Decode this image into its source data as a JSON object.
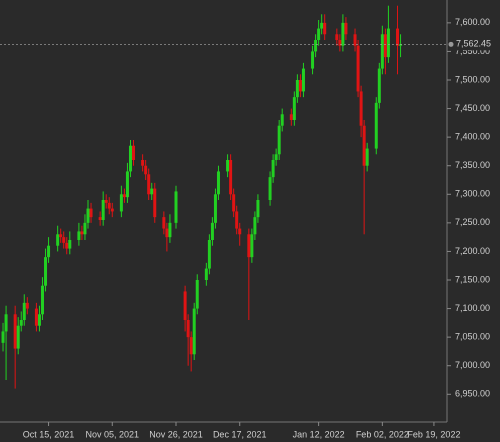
{
  "chart_data": {
    "type": "candlestick",
    "up_color": "#22d022",
    "down_color": "#e01414",
    "x": [
      "2021-09-30",
      "2021-10-01",
      "2021-10-04",
      "2021-10-05",
      "2021-10-06",
      "2021-10-07",
      "2021-10-08",
      "2021-10-11",
      "2021-10-12",
      "2021-10-13",
      "2021-10-14",
      "2021-10-15",
      "2021-10-18",
      "2021-10-19",
      "2021-10-20",
      "2021-10-21",
      "2021-10-22",
      "2021-10-25",
      "2021-10-26",
      "2021-10-27",
      "2021-10-28",
      "2021-10-29",
      "2021-11-01",
      "2021-11-02",
      "2021-11-03",
      "2021-11-04",
      "2021-11-05",
      "2021-11-08",
      "2021-11-09",
      "2021-11-10",
      "2021-11-11",
      "2021-11-12",
      "2021-11-15",
      "2021-11-16",
      "2021-11-17",
      "2021-11-18",
      "2021-11-19",
      "2021-11-22",
      "2021-11-23",
      "2021-11-24",
      "2021-11-26",
      "2021-11-29",
      "2021-11-30",
      "2021-12-01",
      "2021-12-02",
      "2021-12-03",
      "2021-12-06",
      "2021-12-07",
      "2021-12-08",
      "2021-12-09",
      "2021-12-10",
      "2021-12-13",
      "2021-12-14",
      "2021-12-15",
      "2021-12-16",
      "2021-12-17",
      "2021-12-20",
      "2021-12-21",
      "2021-12-22",
      "2021-12-23",
      "2021-12-27",
      "2021-12-28",
      "2021-12-29",
      "2021-12-30",
      "2021-12-31",
      "2022-01-03",
      "2022-01-04",
      "2022-01-05",
      "2022-01-06",
      "2022-01-07",
      "2022-01-10",
      "2022-01-11",
      "2022-01-12",
      "2022-01-13",
      "2022-01-14",
      "2022-01-18",
      "2022-01-19",
      "2022-01-20",
      "2022-01-21",
      "2022-01-24",
      "2022-01-25",
      "2022-01-26",
      "2022-01-27",
      "2022-01-28",
      "2022-01-31",
      "2022-02-01",
      "2022-02-02",
      "2022-02-03",
      "2022-02-04",
      "2022-02-07",
      "2022-02-08"
    ],
    "open": [
      7040,
      7060,
      7090,
      7030,
      7070,
      7080,
      7110,
      7100,
      7070,
      7090,
      7140,
      7190,
      7210,
      7230,
      7225,
      7215,
      7205,
      7220,
      7235,
      7230,
      7250,
      7275,
      7260,
      7255,
      7290,
      7285,
      7275,
      7270,
      7300,
      7295,
      7340,
      7385,
      7360,
      7350,
      7335,
      7300,
      7310,
      7260,
      7240,
      7225,
      7250,
      7130,
      7080,
      7050,
      7020,
      7100,
      7150,
      7170,
      7220,
      7250,
      7300,
      7340,
      7360,
      7300,
      7270,
      7240,
      7230,
      7190,
      7230,
      7260,
      7290,
      7330,
      7360,
      7370,
      7420,
      7440,
      7430,
      7470,
      7500,
      7480,
      7520,
      7550,
      7570,
      7590,
      7600,
      7580,
      7570,
      7560,
      7600,
      7580,
      7560,
      7480,
      7420,
      7350,
      7380,
      7460,
      7520,
      7580,
      7540,
      7590,
      7560
    ],
    "high": [
      7075,
      7105,
      7105,
      7085,
      7095,
      7125,
      7120,
      7110,
      7105,
      7155,
      7205,
      7225,
      7245,
      7240,
      7235,
      7225,
      7235,
      7250,
      7245,
      7265,
      7290,
      7285,
      7270,
      7305,
      7300,
      7295,
      7285,
      7315,
      7310,
      7355,
      7395,
      7395,
      7370,
      7360,
      7345,
      7320,
      7320,
      7270,
      7250,
      7265,
      7315,
      7140,
      7090,
      7060,
      7110,
      7160,
      7180,
      7230,
      7260,
      7310,
      7350,
      7370,
      7370,
      7310,
      7280,
      7250,
      7240,
      7240,
      7270,
      7300,
      7340,
      7370,
      7380,
      7430,
      7450,
      7450,
      7480,
      7510,
      7510,
      7530,
      7560,
      7580,
      7605,
      7615,
      7615,
      7590,
      7580,
      7615,
      7610,
      7590,
      7570,
      7490,
      7430,
      7390,
      7470,
      7530,
      7595,
      7590,
      7630,
      7630,
      7580
    ],
    "low": [
      7025,
      6975,
      6960,
      7020,
      7060,
      7070,
      7090,
      7060,
      7060,
      7080,
      7130,
      7180,
      7200,
      7215,
      7205,
      7195,
      7195,
      7210,
      7220,
      7220,
      7240,
      7250,
      7245,
      7245,
      7275,
      7265,
      7260,
      7260,
      7285,
      7285,
      7330,
      7350,
      7340,
      7325,
      7290,
      7290,
      7250,
      7230,
      7200,
      7215,
      7240,
      7060,
      7000,
      6990,
      7010,
      7090,
      7140,
      7160,
      7210,
      7240,
      7290,
      7330,
      7290,
      7260,
      7230,
      7210,
      7080,
      7180,
      7220,
      7250,
      7280,
      7320,
      7350,
      7360,
      7410,
      7420,
      7420,
      7460,
      7470,
      7470,
      7510,
      7540,
      7560,
      7580,
      7570,
      7560,
      7550,
      7550,
      7570,
      7550,
      7470,
      7400,
      7230,
      7340,
      7370,
      7450,
      7510,
      7510,
      7530,
      7510,
      7540
    ],
    "close": [
      7060,
      7090,
      7030,
      7070,
      7080,
      7110,
      7100,
      7070,
      7090,
      7140,
      7190,
      7210,
      7230,
      7225,
      7215,
      7205,
      7220,
      7235,
      7230,
      7250,
      7275,
      7260,
      7255,
      7290,
      7285,
      7275,
      7270,
      7300,
      7295,
      7340,
      7385,
      7360,
      7350,
      7335,
      7300,
      7310,
      7260,
      7240,
      7225,
      7250,
      7305,
      7080,
      7050,
      7020,
      7100,
      7150,
      7170,
      7220,
      7250,
      7300,
      7340,
      7360,
      7300,
      7270,
      7240,
      7230,
      7190,
      7230,
      7260,
      7290,
      7330,
      7360,
      7370,
      7420,
      7440,
      7430,
      7470,
      7500,
      7480,
      7520,
      7550,
      7570,
      7590,
      7600,
      7580,
      7570,
      7560,
      7600,
      7580,
      7560,
      7480,
      7420,
      7350,
      7380,
      7460,
      7520,
      7580,
      7540,
      7590,
      7560,
      7562.45
    ],
    "last_price": {
      "value": 7562.45,
      "label": "7,562.45"
    },
    "xlim": [
      "2021-09-29",
      "2022-02-21"
    ],
    "xticks": [
      {
        "value": "2021-10-15",
        "label": "Oct 15, 2021"
      },
      {
        "value": "2021-11-05",
        "label": "Nov 05, 2021"
      },
      {
        "value": "2021-11-26",
        "label": "Nov 26, 2021"
      },
      {
        "value": "2021-12-17",
        "label": "Dec 17, 2021"
      },
      {
        "value": "2022-01-12",
        "label": "Jan 12, 2022"
      },
      {
        "value": "2022-02-02",
        "label": "Feb 02, 2022"
      },
      {
        "value": "2022-02-19",
        "label": "Feb 19, 2022"
      }
    ],
    "ylim": [
      6905,
      7640
    ],
    "yticks": [
      {
        "value": 6950,
        "label": "6,950.00"
      },
      {
        "value": 7000,
        "label": "7,000.00"
      },
      {
        "value": 7050,
        "label": "7,050.00"
      },
      {
        "value": 7100,
        "label": "7,100.00"
      },
      {
        "value": 7150,
        "label": "7,150.00"
      },
      {
        "value": 7200,
        "label": "7,200.00"
      },
      {
        "value": 7250,
        "label": "7,250.00"
      },
      {
        "value": 7300,
        "label": "7,300.00"
      },
      {
        "value": 7350,
        "label": "7,350.00"
      },
      {
        "value": 7400,
        "label": "7,400.00"
      },
      {
        "value": 7450,
        "label": "7,450.00"
      },
      {
        "value": 7500,
        "label": "7,500.00"
      },
      {
        "value": 7550,
        "label": "7,550.00"
      },
      {
        "value": 7600,
        "label": "7,600.00"
      }
    ],
    "grid": false
  }
}
